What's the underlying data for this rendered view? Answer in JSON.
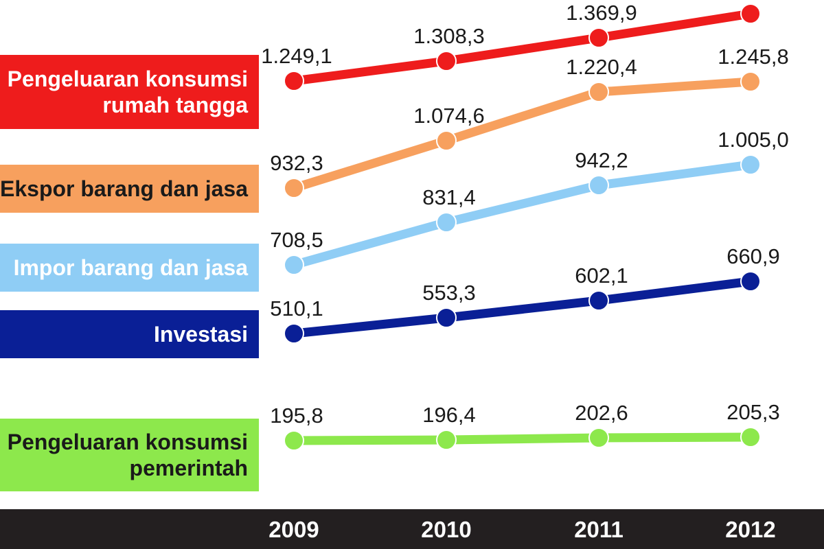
{
  "chart_data": {
    "type": "line",
    "x": [
      "2009",
      "2010",
      "2011",
      "2012"
    ],
    "series": [
      {
        "name": "Pengeluaran konsumsi\nrumah tangga",
        "color": "#ee1c1c",
        "values": [
          1249.1,
          1308.3,
          1369.9,
          1434.6
        ],
        "labels": [
          "1.249,1",
          "1.308,3",
          "1.369,9",
          null
        ]
      },
      {
        "name": "Ekspor barang dan jasa",
        "color": "#f7a05e",
        "values": [
          932.3,
          1074.6,
          1220.4,
          1245.8
        ],
        "labels": [
          "932,3",
          "1.074,6",
          "1.220,4",
          "1.245,8"
        ]
      },
      {
        "name": "Impor barang dan jasa",
        "color": "#8fcdf5",
        "values": [
          708.5,
          831.4,
          942.2,
          1005.0
        ],
        "labels": [
          "708,5",
          "831,4",
          "942,2",
          "1.005,0"
        ]
      },
      {
        "name": "Investasi",
        "color": "#0a1f96",
        "values": [
          510.1,
          553.3,
          602.1,
          660.9
        ],
        "labels": [
          "510,1",
          "553,3",
          "602,1",
          "660,9"
        ]
      },
      {
        "name": "Pengeluaran konsumsi\npemerintah",
        "color": "#8de84c",
        "values": [
          195.8,
          196.4,
          202.6,
          205.3
        ],
        "labels": [
          "195,8",
          "196,4",
          "202,6",
          "205,3"
        ]
      }
    ],
    "axis_band_color": "#231f20",
    "legend_text_colors": [
      "#ffffff",
      "#1a1a1a",
      "#ffffff",
      "#ffffff",
      "#1a1a1a"
    ]
  }
}
